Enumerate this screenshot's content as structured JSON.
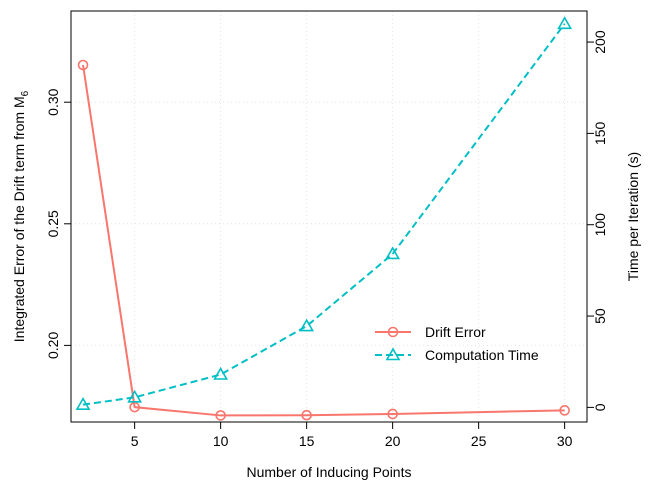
{
  "chart_data": {
    "type": "line",
    "x": [
      2,
      5,
      10,
      15,
      20,
      30
    ],
    "xlabel": "Number of Inducing Points",
    "xlim": [
      1.3,
      31.3
    ],
    "xticks": [
      "5",
      "10",
      "15",
      "20",
      "25",
      "30"
    ],
    "ylabel_left_main": "Integrated Error of the Drift term from M",
    "ylabel_left_sub": "6",
    "ylim_left": [
      0.1685,
      0.3375
    ],
    "yticks_left": [
      "0.20",
      "0.25",
      "0.30"
    ],
    "ylabel_right": "Time per Iteration (s)",
    "ylim_right": [
      -8,
      217
    ],
    "yticks_right": [
      "0",
      "50",
      "100",
      "150",
      "200"
    ],
    "grid": true,
    "legend_position": "bottom-right",
    "series": [
      {
        "name": "Drift Error",
        "axis": "left",
        "color": "#F8766D",
        "line_style": "solid",
        "marker": "circle",
        "values": [
          0.3153,
          0.1746,
          0.1712,
          0.1713,
          0.1718,
          0.1733
        ]
      },
      {
        "name": "Computation Time",
        "axis": "right",
        "color": "#00BFC4",
        "line_style": "dashed",
        "marker": "triangle",
        "values": [
          1.5,
          5.5,
          18,
          44.5,
          84,
          210
        ]
      }
    ]
  }
}
